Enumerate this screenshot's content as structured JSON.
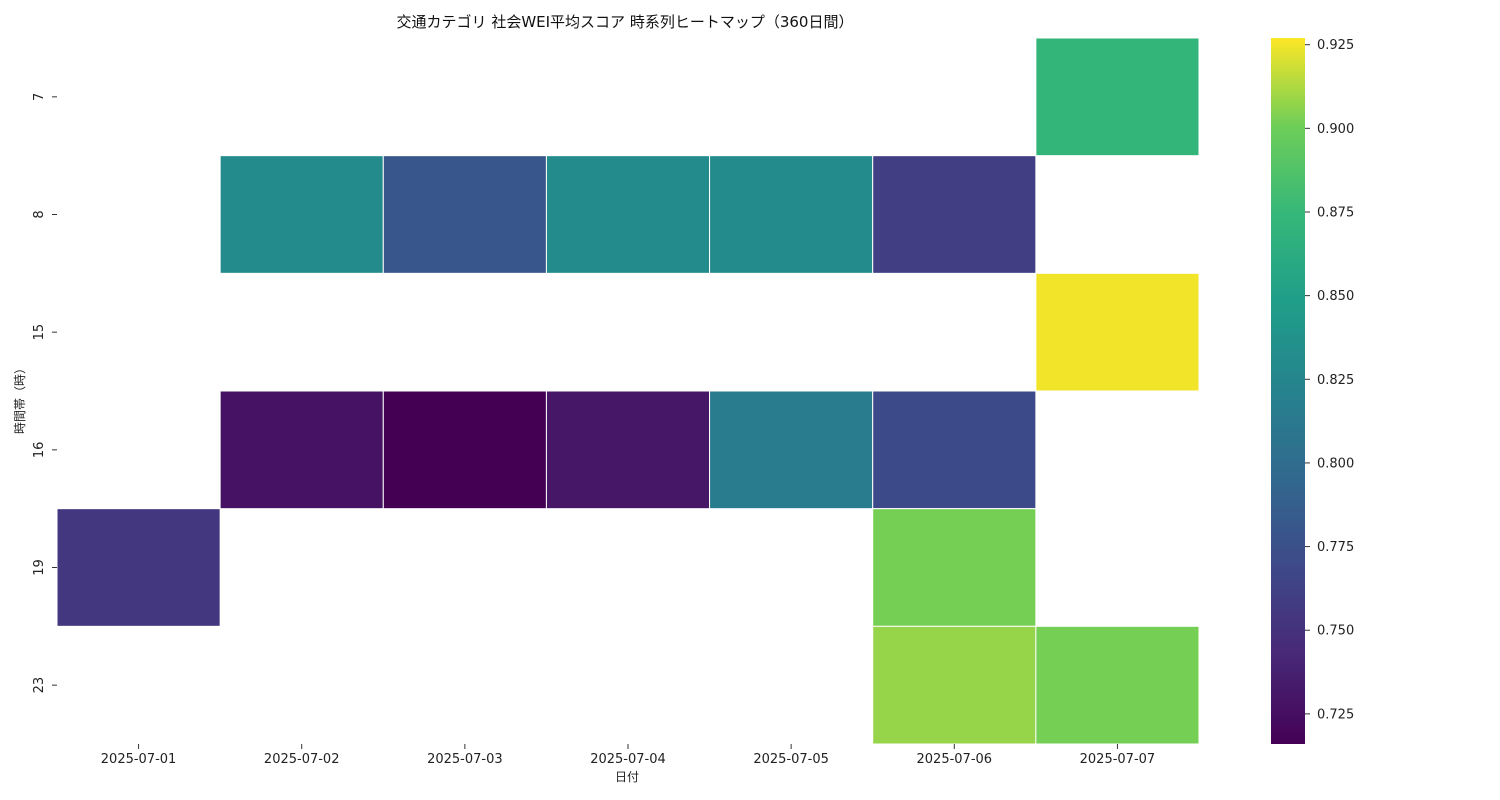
{
  "chart_data": {
    "type": "heatmap",
    "title": "交通カテゴリ 社会WEI平均スコア 時系列ヒートマップ（360日間）",
    "xlabel": "日付",
    "ylabel": "時間帯（時）",
    "x": [
      "2025-07-01",
      "2025-07-02",
      "2025-07-03",
      "2025-07-04",
      "2025-07-05",
      "2025-07-06",
      "2025-07-07"
    ],
    "y": [
      "7",
      "8",
      "15",
      "16",
      "19",
      "23"
    ],
    "values": [
      [
        null,
        null,
        null,
        null,
        null,
        null,
        0.872
      ],
      [
        null,
        0.83,
        0.78,
        0.83,
        0.83,
        0.76,
        null
      ],
      [
        null,
        null,
        null,
        null,
        null,
        null,
        0.925
      ],
      [
        null,
        0.728,
        0.716,
        0.73,
        0.815,
        0.77,
        null
      ],
      [
        0.755,
        null,
        null,
        null,
        null,
        0.902,
        null
      ],
      [
        null,
        null,
        null,
        null,
        null,
        0.908,
        0.902
      ]
    ],
    "colorbar": {
      "colormap": "viridis",
      "range": [
        0.716,
        0.927
      ],
      "ticks": [
        "0.725",
        "0.750",
        "0.775",
        "0.800",
        "0.825",
        "0.850",
        "0.875",
        "0.900",
        "0.925"
      ]
    }
  }
}
